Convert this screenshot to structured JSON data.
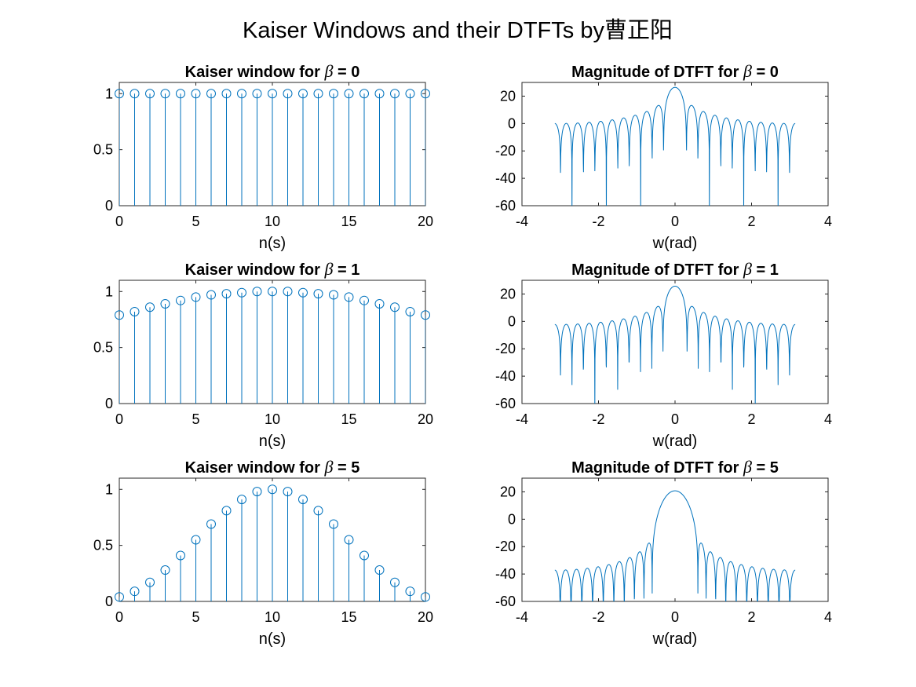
{
  "figure_title": "Kaiser Windows and their DTFTs by曹正阳",
  "series_color": "#0072BD",
  "chart_data": [
    {
      "type": "stem",
      "title": "Kaiser window for β = 0",
      "title_prefix": "Kaiser window for ",
      "title_symbol": "β",
      "title_suffix": " = 0",
      "xlabel": "n(s)",
      "ylabel": "",
      "xlim": [
        0,
        20
      ],
      "ylim": [
        0,
        1.1
      ],
      "xticks": [
        0,
        5,
        10,
        15,
        20
      ],
      "yticks": [
        0,
        0.5,
        1
      ],
      "marker": "circle",
      "grid": false,
      "x": [
        0,
        1,
        2,
        3,
        4,
        5,
        6,
        7,
        8,
        9,
        10,
        11,
        12,
        13,
        14,
        15,
        16,
        17,
        18,
        19,
        20
      ],
      "y": [
        1,
        1,
        1,
        1,
        1,
        1,
        1,
        1,
        1,
        1,
        1,
        1,
        1,
        1,
        1,
        1,
        1,
        1,
        1,
        1,
        1
      ]
    },
    {
      "type": "line",
      "title": "Magnitude of DTFT for β = 0",
      "title_prefix": "Magnitude of DTFT for ",
      "title_symbol": "β",
      "title_suffix": " = 0",
      "xlabel": "w(rad)",
      "ylabel": "",
      "xlim": [
        -4,
        4
      ],
      "ylim": [
        -60,
        30
      ],
      "xticks": [
        -4,
        -2,
        0,
        2,
        4
      ],
      "yticks": [
        -60,
        -40,
        -20,
        0,
        20
      ],
      "grid": false,
      "beta": 0,
      "window_length": 21,
      "w_range": [
        -3.1416,
        3.1416
      ],
      "peak_db": 26.4
    },
    {
      "type": "stem",
      "title": "Kaiser window for β = 1",
      "title_prefix": "Kaiser window for ",
      "title_symbol": "β",
      "title_suffix": " = 1",
      "xlabel": "n(s)",
      "ylabel": "",
      "xlim": [
        0,
        20
      ],
      "ylim": [
        0,
        1.1
      ],
      "xticks": [
        0,
        5,
        10,
        15,
        20
      ],
      "yticks": [
        0,
        0.5,
        1
      ],
      "marker": "circle",
      "grid": false,
      "x": [
        0,
        1,
        2,
        3,
        4,
        5,
        6,
        7,
        8,
        9,
        10,
        11,
        12,
        13,
        14,
        15,
        16,
        17,
        18,
        19,
        20
      ],
      "y": [
        0.79,
        0.82,
        0.86,
        0.89,
        0.92,
        0.95,
        0.97,
        0.98,
        0.99,
        1.0,
        1.0,
        1.0,
        0.99,
        0.98,
        0.97,
        0.95,
        0.92,
        0.89,
        0.86,
        0.82,
        0.79
      ]
    },
    {
      "type": "line",
      "title": "Magnitude of DTFT for β = 1",
      "title_prefix": "Magnitude of DTFT for ",
      "title_symbol": "β",
      "title_suffix": " = 1",
      "xlabel": "w(rad)",
      "ylabel": "",
      "xlim": [
        -4,
        4
      ],
      "ylim": [
        -60,
        30
      ],
      "xticks": [
        -4,
        -2,
        0,
        2,
        4
      ],
      "yticks": [
        -60,
        -40,
        -20,
        0,
        20
      ],
      "grid": false,
      "beta": 1,
      "window_length": 21,
      "w_range": [
        -3.1416,
        3.1416
      ],
      "peak_db": 25.7
    },
    {
      "type": "stem",
      "title": "Kaiser window for β = 5",
      "title_prefix": "Kaiser window for ",
      "title_symbol": "β",
      "title_suffix": " = 5",
      "xlabel": "n(s)",
      "ylabel": "",
      "xlim": [
        0,
        20
      ],
      "ylim": [
        0,
        1.1
      ],
      "xticks": [
        0,
        5,
        10,
        15,
        20
      ],
      "yticks": [
        0,
        0.5,
        1
      ],
      "marker": "circle",
      "grid": false,
      "x": [
        0,
        1,
        2,
        3,
        4,
        5,
        6,
        7,
        8,
        9,
        10,
        11,
        12,
        13,
        14,
        15,
        16,
        17,
        18,
        19,
        20
      ],
      "y": [
        0.04,
        0.09,
        0.17,
        0.28,
        0.41,
        0.55,
        0.69,
        0.81,
        0.91,
        0.98,
        1.0,
        0.98,
        0.91,
        0.81,
        0.69,
        0.55,
        0.41,
        0.28,
        0.17,
        0.09,
        0.04
      ]
    },
    {
      "type": "line",
      "title": "Magnitude of DTFT for β = 5",
      "title_prefix": "Magnitude of DTFT for ",
      "title_symbol": "β",
      "title_suffix": " = 5",
      "xlabel": "w(rad)",
      "ylabel": "",
      "xlim": [
        -4,
        4
      ],
      "ylim": [
        -60,
        30
      ],
      "xticks": [
        -4,
        -2,
        0,
        2,
        4
      ],
      "yticks": [
        -60,
        -40,
        -20,
        0,
        20
      ],
      "grid": false,
      "beta": 5,
      "window_length": 21,
      "w_range": [
        -3.1416,
        3.1416
      ],
      "peak_db": 20.8
    }
  ]
}
